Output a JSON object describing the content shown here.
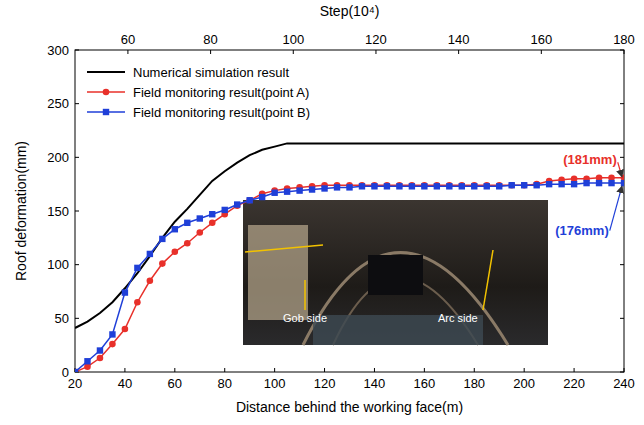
{
  "chart_data": {
    "type": "line",
    "x_label": "Distance behind the working face(m)",
    "y_label": "Roof deformation(mm)",
    "x2_label": "Step(10⁴)",
    "xlim": [
      20,
      240
    ],
    "xticks": [
      20,
      40,
      60,
      80,
      100,
      120,
      140,
      160,
      180,
      200,
      220,
      240
    ],
    "x2lim": [
      47.2,
      180
    ],
    "x2ticks": [
      60,
      80,
      100,
      120,
      140,
      160,
      180
    ],
    "ylim": [
      0,
      300
    ],
    "yticks": [
      0,
      50,
      100,
      150,
      200,
      250,
      300
    ],
    "legend": "upper left",
    "x": [
      20,
      25,
      30,
      35,
      40,
      45,
      50,
      55,
      60,
      65,
      70,
      75,
      80,
      85,
      90,
      95,
      100,
      105,
      110,
      115,
      120,
      125,
      130,
      135,
      140,
      145,
      150,
      155,
      160,
      165,
      170,
      175,
      180,
      185,
      190,
      195,
      200,
      205,
      210,
      215,
      220,
      225,
      230,
      235,
      240
    ],
    "series": [
      {
        "name": "Numerical simulation result",
        "color": "#000000",
        "marker": "none",
        "line_style": "solid",
        "values": [
          41,
          47,
          55,
          65,
          78,
          92,
          108,
          125,
          140,
          152,
          165,
          178,
          187,
          195,
          202,
          207,
          210,
          213,
          213,
          213,
          213,
          213,
          213,
          213,
          213,
          213,
          213,
          213,
          213,
          213,
          213,
          213,
          213,
          213,
          213,
          213,
          213,
          213,
          213,
          213,
          213,
          213,
          213,
          213,
          213
        ]
      },
      {
        "name": "Field monitoring result(point A)",
        "color": "#e8302a",
        "marker": "circle",
        "line_style": "solid",
        "values": [
          0,
          5,
          13,
          26,
          40,
          65,
          85,
          101,
          112,
          120,
          130,
          139,
          147,
          155,
          160,
          166,
          169,
          171,
          172,
          173,
          174,
          174,
          174,
          174,
          174,
          174,
          174,
          174,
          174,
          174,
          174,
          174,
          174,
          174,
          174,
          174,
          174,
          175,
          178,
          179,
          180,
          180,
          181,
          181,
          181
        ]
      },
      {
        "name": "Field monitoring result(point B)",
        "color": "#1f3fd8",
        "marker": "square",
        "line_style": "solid",
        "values": [
          0,
          10,
          20,
          35,
          74,
          97,
          110,
          124,
          133,
          139,
          143,
          147,
          151,
          156,
          160,
          163,
          167,
          168,
          169,
          170,
          171,
          172,
          172,
          173,
          173,
          173,
          173,
          173,
          173,
          173,
          173,
          173,
          173,
          173,
          173,
          174,
          174,
          174,
          175,
          175,
          175,
          176,
          176,
          176,
          176
        ]
      }
    ],
    "annotations": [
      {
        "text": "(181mm)",
        "x": 240,
        "y": 181,
        "color": "#e8302a"
      },
      {
        "text": "(176mm)",
        "x": 240,
        "y": 176,
        "color": "#1f3fd8"
      }
    ],
    "inset_labels": [
      "Gob side",
      "Arc side"
    ]
  }
}
